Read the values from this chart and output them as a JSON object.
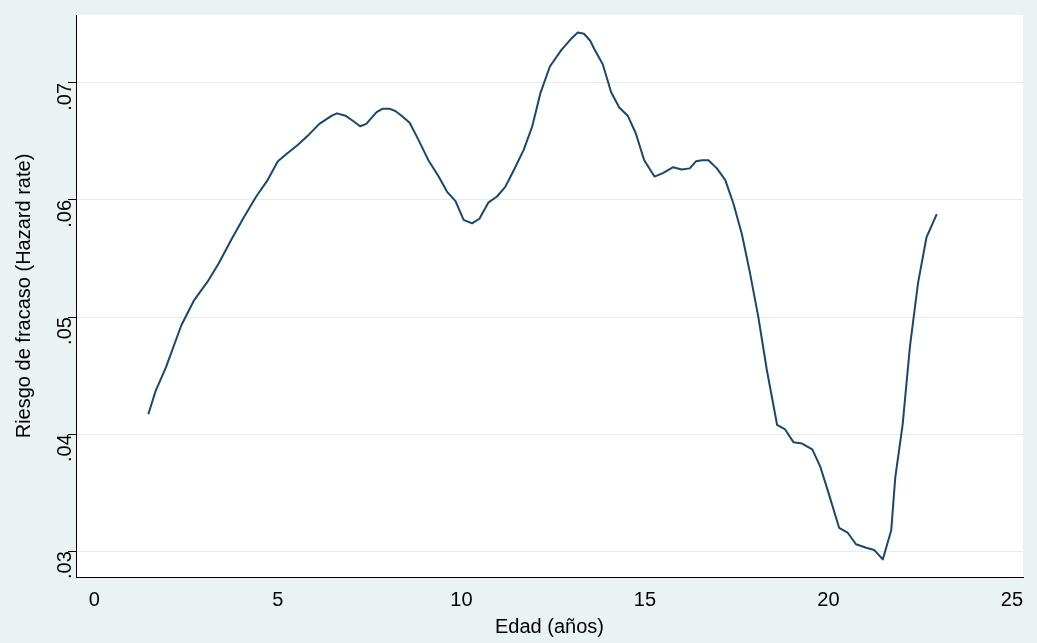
{
  "chart_data": {
    "type": "line",
    "xlabel": "Edad (años)",
    "ylabel": "Riesgo de fracaso (Hazard rate)",
    "xlim": [
      -0.5,
      25.3
    ],
    "xticks": [
      0,
      5,
      10,
      15,
      20,
      25
    ],
    "ylim": [
      0.0278,
      0.0758
    ],
    "yticks": [
      {
        "value": 0.03,
        "label": ".03"
      },
      {
        "value": 0.04,
        "label": ".04"
      },
      {
        "value": 0.05,
        "label": ".05"
      },
      {
        "value": 0.06,
        "label": ".06"
      },
      {
        "value": 0.07,
        "label": ".07"
      }
    ],
    "grid": "y",
    "legend": false,
    "marker": "none",
    "line_style": "solid",
    "series": [
      {
        "color": "#1a476f",
        "x": [
          1.47,
          1.67,
          1.95,
          2.37,
          2.71,
          3.08,
          3.39,
          3.73,
          4.07,
          4.41,
          4.72,
          5.0,
          5.26,
          5.54,
          5.85,
          6.13,
          6.47,
          6.61,
          6.84,
          7.07,
          7.24,
          7.41,
          7.52,
          7.69,
          7.86,
          8.03,
          8.2,
          8.37,
          8.59,
          8.82,
          9.1,
          9.38,
          9.61,
          9.84,
          10.06,
          10.29,
          10.49,
          10.74,
          10.97,
          11.19,
          11.42,
          11.7,
          11.93,
          12.15,
          12.41,
          12.72,
          13.0,
          13.17,
          13.34,
          13.51,
          13.62,
          13.85,
          14.08,
          14.3,
          14.53,
          14.75,
          14.98,
          15.26,
          15.49,
          15.77,
          16.0,
          16.22,
          16.39,
          16.56,
          16.73,
          16.96,
          17.19,
          17.41,
          17.64,
          17.86,
          18.09,
          18.32,
          18.6,
          18.82,
          19.05,
          19.28,
          19.56,
          19.78,
          20.01,
          20.29,
          20.52,
          20.75,
          21.03,
          21.25,
          21.48,
          21.71,
          21.82,
          22.02,
          22.22,
          22.44,
          22.67,
          22.95
        ],
        "values": [
          0.0417,
          0.0437,
          0.0457,
          0.0493,
          0.0514,
          0.053,
          0.0546,
          0.0566,
          0.0585,
          0.0603,
          0.0617,
          0.0633,
          0.064,
          0.0647,
          0.0656,
          0.0665,
          0.0672,
          0.0674,
          0.0672,
          0.0667,
          0.0663,
          0.0665,
          0.0669,
          0.0675,
          0.0678,
          0.0678,
          0.0676,
          0.0672,
          0.0666,
          0.0652,
          0.0634,
          0.062,
          0.0607,
          0.0599,
          0.0583,
          0.058,
          0.0584,
          0.0598,
          0.0603,
          0.0611,
          0.0625,
          0.0643,
          0.0663,
          0.0691,
          0.0714,
          0.0728,
          0.0738,
          0.0743,
          0.0742,
          0.0736,
          0.0729,
          0.0716,
          0.0692,
          0.0679,
          0.0672,
          0.0657,
          0.0634,
          0.062,
          0.0623,
          0.0628,
          0.0626,
          0.0627,
          0.0633,
          0.0634,
          0.0634,
          0.0627,
          0.0617,
          0.0597,
          0.0571,
          0.0538,
          0.05,
          0.0455,
          0.0408,
          0.0404,
          0.0393,
          0.0392,
          0.0387,
          0.0372,
          0.0349,
          0.032,
          0.0316,
          0.0306,
          0.0303,
          0.0301,
          0.0293,
          0.0318,
          0.0363,
          0.0408,
          0.0475,
          0.0529,
          0.0568,
          0.0588
        ]
      }
    ]
  }
}
